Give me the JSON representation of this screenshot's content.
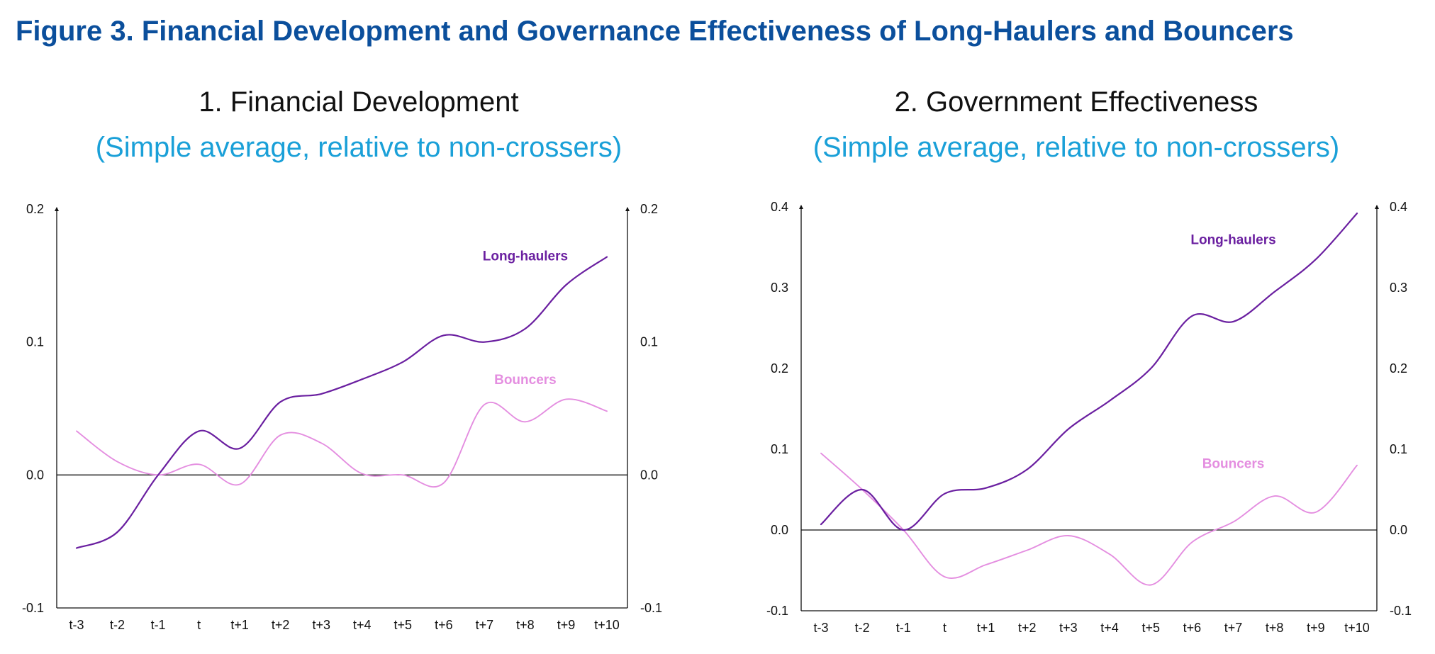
{
  "figure_title": "Figure 3. Financial Development and Governance Effectiveness of Long-Haulers and Bouncers",
  "colors": {
    "title": "#0b4f9c",
    "subtitle": "#1aa0d8",
    "long_haulers": "#6a1fa0",
    "bouncers": "#e48ee0",
    "axis": "#111111"
  },
  "chart_data": [
    {
      "type": "line",
      "title": "1. Financial Development",
      "subtitle": "(Simple average, relative to non-crossers)",
      "categories": [
        "t-3",
        "t-2",
        "t-1",
        "t",
        "t+1",
        "t+2",
        "t+3",
        "t+4",
        "t+5",
        "t+6",
        "t+7",
        "t+8",
        "t+9",
        "t+10"
      ],
      "ylim": [
        -0.1,
        0.2
      ],
      "yticks": [
        "0.2",
        "0.1",
        "0.0",
        "-0.1"
      ],
      "ytick_values": [
        0.2,
        0.1,
        0.0,
        -0.1
      ],
      "dual_axis": true,
      "series": [
        {
          "name": "Long-haulers",
          "color": "#6a1fa0",
          "values": [
            -0.055,
            -0.043,
            0.0,
            0.033,
            0.02,
            0.055,
            0.061,
            0.072,
            0.085,
            0.105,
            0.1,
            0.11,
            0.143,
            0.164
          ]
        },
        {
          "name": "Bouncers",
          "color": "#e48ee0",
          "values": [
            0.033,
            0.01,
            0.0,
            0.008,
            -0.007,
            0.03,
            0.024,
            0.001,
            0.0,
            -0.006,
            0.053,
            0.04,
            0.057,
            0.048
          ]
        }
      ],
      "annotations": [
        {
          "text": "Long-haulers",
          "series": "Long-haulers",
          "at_category": "t+8",
          "at_value": 0.165
        },
        {
          "text": "Bouncers",
          "series": "Bouncers",
          "at_category": "t+8",
          "at_value": 0.072
        }
      ]
    },
    {
      "type": "line",
      "title": "2. Government Effectiveness",
      "subtitle": "(Simple average, relative to non-crossers)",
      "categories": [
        "t-3",
        "t-2",
        "t-1",
        "t",
        "t+1",
        "t+2",
        "t+3",
        "t+4",
        "t+5",
        "t+6",
        "t+7",
        "t+8",
        "t+9",
        "t+10"
      ],
      "ylim": [
        -0.1,
        0.4
      ],
      "yticks": [
        "0.4",
        "0.3",
        "0.2",
        "0.1",
        "0.0",
        "-0.1"
      ],
      "ytick_values": [
        0.4,
        0.3,
        0.2,
        0.1,
        0.0,
        -0.1
      ],
      "dual_axis": true,
      "series": [
        {
          "name": "Long-haulers",
          "color": "#6a1fa0",
          "values": [
            0.007,
            0.05,
            0.0,
            0.045,
            0.052,
            0.075,
            0.125,
            0.16,
            0.2,
            0.265,
            0.258,
            0.295,
            0.335,
            0.392
          ]
        },
        {
          "name": "Bouncers",
          "color": "#e48ee0",
          "values": [
            0.095,
            0.05,
            0.0,
            -0.058,
            -0.043,
            -0.025,
            -0.007,
            -0.03,
            -0.068,
            -0.015,
            0.01,
            0.042,
            0.022,
            0.08
          ]
        }
      ],
      "annotations": [
        {
          "text": "Long-haulers",
          "series": "Long-haulers",
          "at_category": "t+7",
          "at_value": 0.36
        },
        {
          "text": "Bouncers",
          "series": "Bouncers",
          "at_category": "t+7",
          "at_value": 0.083
        }
      ]
    }
  ]
}
